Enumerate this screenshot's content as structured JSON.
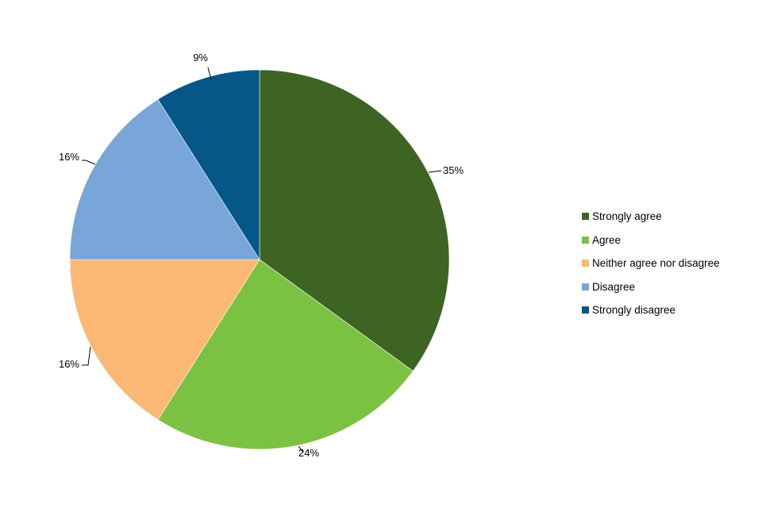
{
  "chart_data": {
    "type": "pie",
    "title": "",
    "start_angle_deg": 0,
    "direction": "clockwise",
    "legend_position": "right",
    "slices": [
      {
        "name": "Strongly agree",
        "value": 35,
        "label": "35%",
        "color": "#3e6423"
      },
      {
        "name": "Agree",
        "value": 24,
        "label": "24%",
        "color": "#7cc242"
      },
      {
        "name": "Neither agree nor disagree",
        "value": 16,
        "label": "16%",
        "color": "#fbb874"
      },
      {
        "name": "Disagree",
        "value": 16,
        "label": "16%",
        "color": "#78a6d8"
      },
      {
        "name": "Strongly disagree",
        "value": 9,
        "label": "9%",
        "color": "#045787"
      }
    ]
  }
}
